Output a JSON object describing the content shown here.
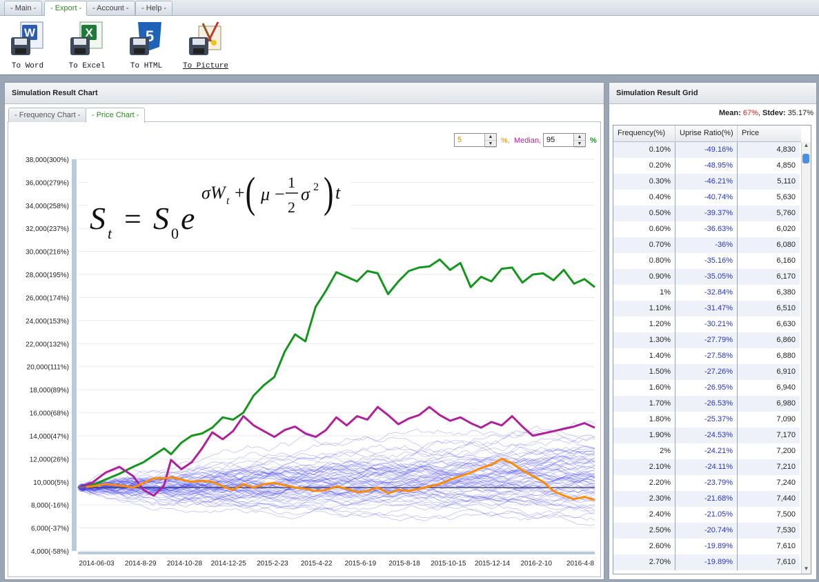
{
  "menu": {
    "tabs": [
      "- Main -",
      "- Export -",
      "- Account -",
      "- Help -"
    ]
  },
  "toolbar": {
    "word": "To Word",
    "excel": "To Excel",
    "html": "To HTML",
    "picture": "To Picture"
  },
  "chart_panel": {
    "title": "Simulation Result Chart",
    "tabs": [
      "- Frequency Chart -",
      "- Price Chart -"
    ]
  },
  "controls": {
    "low_value": "5",
    "low_suffix": "%,",
    "median_label": "Median,",
    "high_value": "95",
    "high_suffix": "%"
  },
  "grid_panel": {
    "title": "Simulation Result Grid",
    "mean_label": "Mean:",
    "mean_value": "67%",
    "stdev_label": "Stdev:",
    "stdev_value": "35.17%",
    "columns": [
      "Frequency(%)",
      "Uprise Ratio(%)",
      "Price"
    ],
    "rows": [
      [
        "0.10%",
        "-49.16%",
        "4,830"
      ],
      [
        "0.20%",
        "-48.95%",
        "4,850"
      ],
      [
        "0.30%",
        "-46.21%",
        "5,110"
      ],
      [
        "0.40%",
        "-40.74%",
        "5,630"
      ],
      [
        "0.50%",
        "-39.37%",
        "5,760"
      ],
      [
        "0.60%",
        "-36.63%",
        "6,020"
      ],
      [
        "0.70%",
        "-36%",
        "6,080"
      ],
      [
        "0.80%",
        "-35.16%",
        "6,160"
      ],
      [
        "0.90%",
        "-35.05%",
        "6,170"
      ],
      [
        "1%",
        "-32.84%",
        "6,380"
      ],
      [
        "1.10%",
        "-31.47%",
        "6,510"
      ],
      [
        "1.20%",
        "-30.21%",
        "6,630"
      ],
      [
        "1.30%",
        "-27.79%",
        "6,860"
      ],
      [
        "1.40%",
        "-27.58%",
        "6,880"
      ],
      [
        "1.50%",
        "-27.26%",
        "6,910"
      ],
      [
        "1.60%",
        "-26.95%",
        "6,940"
      ],
      [
        "1.70%",
        "-26.53%",
        "6,980"
      ],
      [
        "1.80%",
        "-25.37%",
        "7,090"
      ],
      [
        "1.90%",
        "-24.53%",
        "7,170"
      ],
      [
        "2%",
        "-24.21%",
        "7,200"
      ],
      [
        "2.10%",
        "-24.11%",
        "7,210"
      ],
      [
        "2.20%",
        "-23.79%",
        "7,240"
      ],
      [
        "2.30%",
        "-21.68%",
        "7,440"
      ],
      [
        "2.40%",
        "-21.05%",
        "7,500"
      ],
      [
        "2.50%",
        "-20.74%",
        "7,530"
      ],
      [
        "2.60%",
        "-19.89%",
        "7,610"
      ],
      [
        "2.70%",
        "-19.89%",
        "7,610"
      ]
    ]
  },
  "colors": {
    "paths": "#3b3bf0",
    "p5": "#ff8c00",
    "median": "#b0209a",
    "p95": "#14961e",
    "baseline": "#333366"
  },
  "chart_data": {
    "type": "line",
    "title": "",
    "formula": "S_t = S_0 e^{σW_t + (μ − ½σ²)t}",
    "x_ticks": [
      "2014-06-03",
      "2014-8-29",
      "2014-10-28",
      "2014-12-25",
      "2015-2-23",
      "2015-4-22",
      "2015-6-19",
      "2015-8-18",
      "2015-10-15",
      "2015-12-14",
      "2016-2-10",
      "2016-4-8"
    ],
    "y_ticks": [
      "4,000(-58%)",
      "6,000(-37%)",
      "8,000(-16%)",
      "10,000(5%)",
      "12,000(26%)",
      "14,000(47%)",
      "16,000(68%)",
      "18,000(89%)",
      "20,000(111%)",
      "22,000(132%)",
      "24,000(153%)",
      "26,000(174%)",
      "28,000(195%)",
      "30,000(216%)",
      "32,000(237%)",
      "34,000(258%)",
      "36,000(279%)",
      "38,000(300%)"
    ],
    "ylim": [
      4000,
      38000
    ],
    "baseline": 9500,
    "start_value": 9500,
    "series": [
      {
        "name": "95%",
        "x": [
          0,
          20,
          40,
          60,
          80,
          95,
          110,
          125,
          135,
          150,
          165,
          180,
          195,
          210,
          225,
          240,
          255,
          270,
          285,
          300,
          315,
          330,
          345,
          360,
          375,
          390,
          405,
          420,
          435,
          450,
          465,
          480,
          495,
          510,
          525,
          540,
          555,
          570,
          585,
          600,
          615,
          630,
          645,
          660,
          675,
          690,
          705,
          720,
          735,
          750
        ],
        "values": [
          9500,
          9700,
          10200,
          10700,
          11300,
          11700,
          12300,
          12900,
          12400,
          13400,
          14000,
          14200,
          14700,
          15600,
          15400,
          16000,
          17500,
          18400,
          19100,
          21300,
          22800,
          22200,
          25200,
          26600,
          28200,
          27800,
          27400,
          28300,
          28100,
          26300,
          27400,
          28300,
          28600,
          28700,
          29300,
          28400,
          29000,
          26900,
          27800,
          27400,
          28500,
          28600,
          27300,
          28000,
          28100,
          27500,
          28400,
          27200,
          27600,
          26900
        ]
      },
      {
        "name": "Median",
        "x": [
          0,
          20,
          40,
          60,
          80,
          95,
          110,
          125,
          135,
          150,
          165,
          180,
          195,
          210,
          225,
          240,
          255,
          270,
          285,
          300,
          315,
          330,
          345,
          360,
          375,
          390,
          405,
          420,
          435,
          450,
          465,
          480,
          495,
          510,
          525,
          540,
          555,
          570,
          585,
          600,
          615,
          630,
          645,
          660,
          675,
          690,
          705,
          720,
          735,
          750
        ],
        "values": [
          9500,
          9900,
          10800,
          11300,
          10500,
          9300,
          8800,
          9700,
          11900,
          11100,
          11700,
          12900,
          14300,
          13700,
          14400,
          15700,
          14900,
          14400,
          13900,
          14500,
          14800,
          14200,
          13900,
          14500,
          15600,
          14900,
          15700,
          15400,
          16500,
          15800,
          15000,
          15500,
          15800,
          16500,
          15800,
          15300,
          15600,
          15100,
          14700,
          15200,
          14900,
          15700,
          14800,
          14000,
          14200,
          14400,
          14600,
          14800,
          15100,
          14700
        ]
      },
      {
        "name": "5%",
        "x": [
          0,
          20,
          40,
          60,
          80,
          95,
          110,
          125,
          135,
          150,
          165,
          180,
          195,
          210,
          225,
          240,
          255,
          270,
          285,
          300,
          315,
          330,
          345,
          360,
          375,
          390,
          405,
          420,
          435,
          450,
          465,
          480,
          495,
          510,
          525,
          540,
          555,
          570,
          585,
          600,
          615,
          630,
          645,
          660,
          675,
          690,
          705,
          720,
          735,
          750
        ],
        "values": [
          9500,
          9600,
          9800,
          9700,
          9500,
          9900,
          10300,
          10300,
          10400,
          10200,
          10000,
          10100,
          10000,
          9600,
          9300,
          9800,
          9500,
          9800,
          9900,
          9700,
          9500,
          9400,
          9200,
          9300,
          9600,
          9400,
          9100,
          9200,
          9500,
          9000,
          9300,
          9200,
          9400,
          9600,
          9800,
          10200,
          10500,
          10800,
          11200,
          11500,
          12000,
          11600,
          11000,
          10500,
          10000,
          9200,
          8800,
          8500,
          8700,
          8400
        ]
      }
    ]
  }
}
